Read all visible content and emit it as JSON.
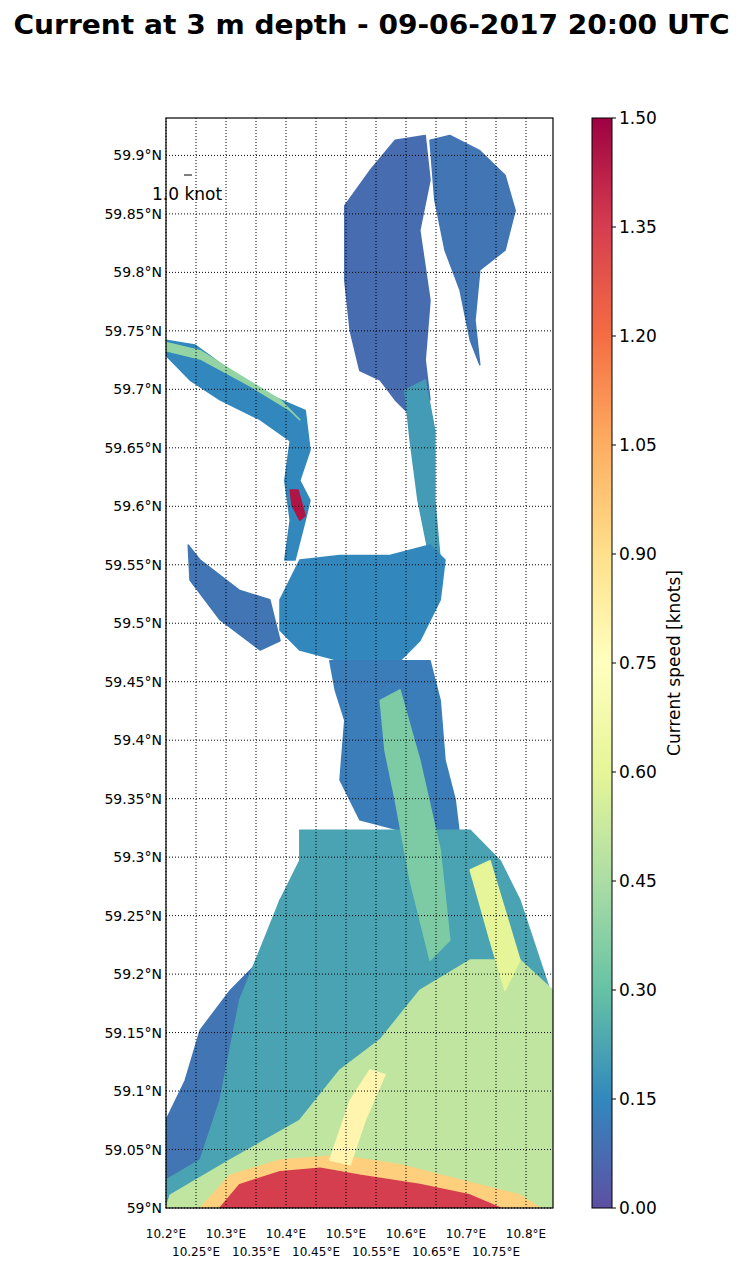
{
  "chart_data": {
    "type": "map",
    "title": "Current at 3 m depth - 09-06-2017 20:00 UTC",
    "xlim": [
      10.2,
      10.845
    ],
    "ylim": [
      59.0,
      59.932
    ],
    "xticks": [
      {
        "value": 10.2,
        "label": "10.2°E"
      },
      {
        "value": 10.25,
        "label": "10.25°E"
      },
      {
        "value": 10.3,
        "label": "10.3°E"
      },
      {
        "value": 10.35,
        "label": "10.35°E"
      },
      {
        "value": 10.4,
        "label": "10.4°E"
      },
      {
        "value": 10.45,
        "label": "10.45°E"
      },
      {
        "value": 10.5,
        "label": "10.5°E"
      },
      {
        "value": 10.55,
        "label": "10.55°E"
      },
      {
        "value": 10.6,
        "label": "10.6°E"
      },
      {
        "value": 10.65,
        "label": "10.65°E"
      },
      {
        "value": 10.7,
        "label": "10.7°E"
      },
      {
        "value": 10.75,
        "label": "10.75°E"
      },
      {
        "value": 10.8,
        "label": "10.8°E"
      }
    ],
    "yticks": [
      {
        "value": 59.0,
        "label": "59°N"
      },
      {
        "value": 59.05,
        "label": "59.05°N"
      },
      {
        "value": 59.1,
        "label": "59.1°N"
      },
      {
        "value": 59.15,
        "label": "59.15°N"
      },
      {
        "value": 59.2,
        "label": "59.2°N"
      },
      {
        "value": 59.25,
        "label": "59.25°N"
      },
      {
        "value": 59.3,
        "label": "59.3°N"
      },
      {
        "value": 59.35,
        "label": "59.35°N"
      },
      {
        "value": 59.4,
        "label": "59.4°N"
      },
      {
        "value": 59.45,
        "label": "59.45°N"
      },
      {
        "value": 59.5,
        "label": "59.5°N"
      },
      {
        "value": 59.55,
        "label": "59.55°N"
      },
      {
        "value": 59.6,
        "label": "59.6°N"
      },
      {
        "value": 59.65,
        "label": "59.65°N"
      },
      {
        "value": 59.7,
        "label": "59.7°N"
      },
      {
        "value": 59.75,
        "label": "59.75°N"
      },
      {
        "value": 59.8,
        "label": "59.8°N"
      },
      {
        "value": 59.85,
        "label": "59.85°N"
      },
      {
        "value": 59.9,
        "label": "59.9°N"
      }
    ],
    "grid": true,
    "annotations": [
      "1.0 knot"
    ],
    "colorbar": {
      "label": "Current speed [knots]",
      "range": [
        0,
        1.5
      ],
      "ticks": [
        {
          "value": 0,
          "label": "0.00"
        },
        {
          "value": 0.15,
          "label": "0.15"
        },
        {
          "value": 0.3,
          "label": "0.30"
        },
        {
          "value": 0.45,
          "label": "0.45"
        },
        {
          "value": 0.6,
          "label": "0.60"
        },
        {
          "value": 0.75,
          "label": "0.75"
        },
        {
          "value": 0.9,
          "label": "0.90"
        },
        {
          "value": 1.05,
          "label": "1.05"
        },
        {
          "value": 1.2,
          "label": "1.20"
        },
        {
          "value": 1.35,
          "label": "1.35"
        },
        {
          "value": 1.5,
          "label": "1.50"
        }
      ]
    },
    "regions": [
      {
        "speed": 0.08,
        "points": [
          [
            10.498,
            59.857
          ],
          [
            10.54,
            59.887
          ],
          [
            10.582,
            59.913
          ],
          [
            10.632,
            59.917
          ],
          [
            10.64,
            59.879
          ],
          [
            10.623,
            59.836
          ],
          [
            10.64,
            59.776
          ],
          [
            10.632,
            59.725
          ],
          [
            10.64,
            59.691
          ],
          [
            10.615,
            59.674
          ],
          [
            10.582,
            59.691
          ],
          [
            10.557,
            59.708
          ],
          [
            10.523,
            59.716
          ],
          [
            10.507,
            59.75
          ],
          [
            10.498,
            59.793
          ]
        ]
      },
      {
        "speed": 0.1,
        "points": [
          [
            10.64,
            59.913
          ],
          [
            10.673,
            59.917
          ],
          [
            10.723,
            59.904
          ],
          [
            10.765,
            59.883
          ],
          [
            10.782,
            59.853
          ],
          [
            10.765,
            59.819
          ],
          [
            10.723,
            59.802
          ],
          [
            10.715,
            59.759
          ],
          [
            10.723,
            59.721
          ],
          [
            10.707,
            59.742
          ],
          [
            10.69,
            59.785
          ],
          [
            10.665,
            59.819
          ],
          [
            10.648,
            59.862
          ]
        ]
      },
      {
        "speed": 0.2,
        "points": [
          [
            10.598,
            59.699
          ],
          [
            10.632,
            59.708
          ],
          [
            10.648,
            59.665
          ],
          [
            10.648,
            59.605
          ],
          [
            10.657,
            59.554
          ],
          [
            10.64,
            59.554
          ],
          [
            10.62,
            59.605
          ],
          [
            10.607,
            59.656
          ]
        ]
      },
      {
        "speed": 0.15,
        "points": [
          [
            10.39,
            59.52
          ],
          [
            10.423,
            59.554
          ],
          [
            10.49,
            59.558
          ],
          [
            10.573,
            59.558
          ],
          [
            10.64,
            59.567
          ],
          [
            10.665,
            59.554
          ],
          [
            10.657,
            59.52
          ],
          [
            10.623,
            59.485
          ],
          [
            10.59,
            59.468
          ],
          [
            10.557,
            59.451
          ],
          [
            10.49,
            59.468
          ],
          [
            10.423,
            59.477
          ],
          [
            10.39,
            59.494
          ]
        ]
      },
      {
        "speed": 0.1,
        "points": [
          [
            10.237,
            59.567
          ],
          [
            10.257,
            59.554
          ],
          [
            10.323,
            59.528
          ],
          [
            10.373,
            59.52
          ],
          [
            10.39,
            59.485
          ],
          [
            10.357,
            59.477
          ],
          [
            10.29,
            59.503
          ],
          [
            10.24,
            59.537
          ]
        ]
      },
      {
        "speed": 0.15,
        "points": [
          [
            10.2,
            59.742
          ],
          [
            10.248,
            59.738
          ],
          [
            10.307,
            59.716
          ],
          [
            10.373,
            59.695
          ],
          [
            10.432,
            59.682
          ],
          [
            10.44,
            59.648
          ],
          [
            10.423,
            59.622
          ],
          [
            10.44,
            59.605
          ],
          [
            10.432,
            59.588
          ],
          [
            10.415,
            59.554
          ],
          [
            10.398,
            59.554
          ],
          [
            10.407,
            59.588
          ],
          [
            10.398,
            59.622
          ],
          [
            10.407,
            59.656
          ],
          [
            10.357,
            59.674
          ],
          [
            10.29,
            59.691
          ],
          [
            10.24,
            59.708
          ],
          [
            10.2,
            59.729
          ]
        ]
      },
      {
        "speed": 0.4,
        "points": [
          [
            10.2,
            59.74
          ],
          [
            10.257,
            59.733
          ],
          [
            10.323,
            59.712
          ],
          [
            10.39,
            59.691
          ],
          [
            10.423,
            59.674
          ],
          [
            10.407,
            59.682
          ],
          [
            10.34,
            59.703
          ],
          [
            10.257,
            59.726
          ],
          [
            10.2,
            59.733
          ]
        ]
      },
      {
        "speed": 0.12,
        "points": [
          [
            10.473,
            59.468
          ],
          [
            10.59,
            59.468
          ],
          [
            10.64,
            59.468
          ],
          [
            10.657,
            59.434
          ],
          [
            10.665,
            59.383
          ],
          [
            10.682,
            59.349
          ],
          [
            10.69,
            59.315
          ],
          [
            10.59,
            59.323
          ],
          [
            10.523,
            59.332
          ],
          [
            10.49,
            59.366
          ],
          [
            10.498,
            59.417
          ],
          [
            10.482,
            59.443
          ]
        ]
      },
      {
        "speed": 0.1,
        "points": [
          [
            10.2,
            59.0
          ],
          [
            10.2,
            59.075
          ],
          [
            10.232,
            59.109
          ],
          [
            10.257,
            59.152
          ],
          [
            10.307,
            59.186
          ],
          [
            10.357,
            59.212
          ],
          [
            10.39,
            59.263
          ],
          [
            10.423,
            59.28
          ],
          [
            10.407,
            59.221
          ],
          [
            10.373,
            59.135
          ],
          [
            10.34,
            59.05
          ],
          [
            10.307,
            59.0
          ]
        ]
      },
      {
        "speed": 0.22,
        "points": [
          [
            10.423,
            59.323
          ],
          [
            10.707,
            59.323
          ],
          [
            10.757,
            59.297
          ],
          [
            10.79,
            59.263
          ],
          [
            10.823,
            59.212
          ],
          [
            10.845,
            59.178
          ],
          [
            10.845,
            59.0
          ],
          [
            10.2,
            59.0
          ],
          [
            10.2,
            59.024
          ],
          [
            10.257,
            59.041
          ],
          [
            10.29,
            59.092
          ],
          [
            10.323,
            59.178
          ],
          [
            10.357,
            59.221
          ],
          [
            10.39,
            59.263
          ],
          [
            10.423,
            59.297
          ]
        ]
      },
      {
        "speed": 0.35,
        "points": [
          [
            10.557,
            59.434
          ],
          [
            10.59,
            59.443
          ],
          [
            10.623,
            59.383
          ],
          [
            10.657,
            59.306
          ],
          [
            10.673,
            59.229
          ],
          [
            10.64,
            59.212
          ],
          [
            10.607,
            59.28
          ],
          [
            10.582,
            59.349
          ],
          [
            10.565,
            59.391
          ]
        ]
      },
      {
        "speed": 0.5,
        "points": [
          [
            10.207,
            59.011
          ],
          [
            10.307,
            59.041
          ],
          [
            10.423,
            59.075
          ],
          [
            10.49,
            59.118
          ],
          [
            10.557,
            59.144
          ],
          [
            10.623,
            59.186
          ],
          [
            10.707,
            59.212
          ],
          [
            10.79,
            59.212
          ],
          [
            10.845,
            59.186
          ],
          [
            10.845,
            59.0
          ],
          [
            10.2,
            59.0
          ]
        ]
      },
      {
        "speed": 0.6,
        "points": [
          [
            10.707,
            59.289
          ],
          [
            10.74,
            59.297
          ],
          [
            10.79,
            59.212
          ],
          [
            10.765,
            59.186
          ],
          [
            10.74,
            59.229
          ]
        ]
      },
      {
        "speed": 0.95,
        "points": [
          [
            10.257,
            59.0
          ],
          [
            10.307,
            59.028
          ],
          [
            10.39,
            59.041
          ],
          [
            10.49,
            59.045
          ],
          [
            10.59,
            59.037
          ],
          [
            10.69,
            59.024
          ],
          [
            10.79,
            59.011
          ],
          [
            10.823,
            59.0
          ]
        ]
      },
      {
        "speed": 0.8,
        "points": [
          [
            10.473,
            59.041
          ],
          [
            10.507,
            59.092
          ],
          [
            10.54,
            59.118
          ],
          [
            10.565,
            59.114
          ],
          [
            10.532,
            59.075
          ],
          [
            10.507,
            59.037
          ]
        ]
      },
      {
        "speed": 1.35,
        "points": [
          [
            10.29,
            59.0
          ],
          [
            10.323,
            59.02
          ],
          [
            10.39,
            59.031
          ],
          [
            10.457,
            59.034
          ],
          [
            10.523,
            59.028
          ],
          [
            10.623,
            59.02
          ],
          [
            10.707,
            59.011
          ],
          [
            10.757,
            59.0
          ]
        ]
      },
      {
        "speed": 1.45,
        "points": [
          [
            10.407,
            59.614
          ],
          [
            10.42,
            59.614
          ],
          [
            10.432,
            59.592
          ],
          [
            10.423,
            59.588
          ],
          [
            10.41,
            59.601
          ]
        ]
      }
    ]
  }
}
